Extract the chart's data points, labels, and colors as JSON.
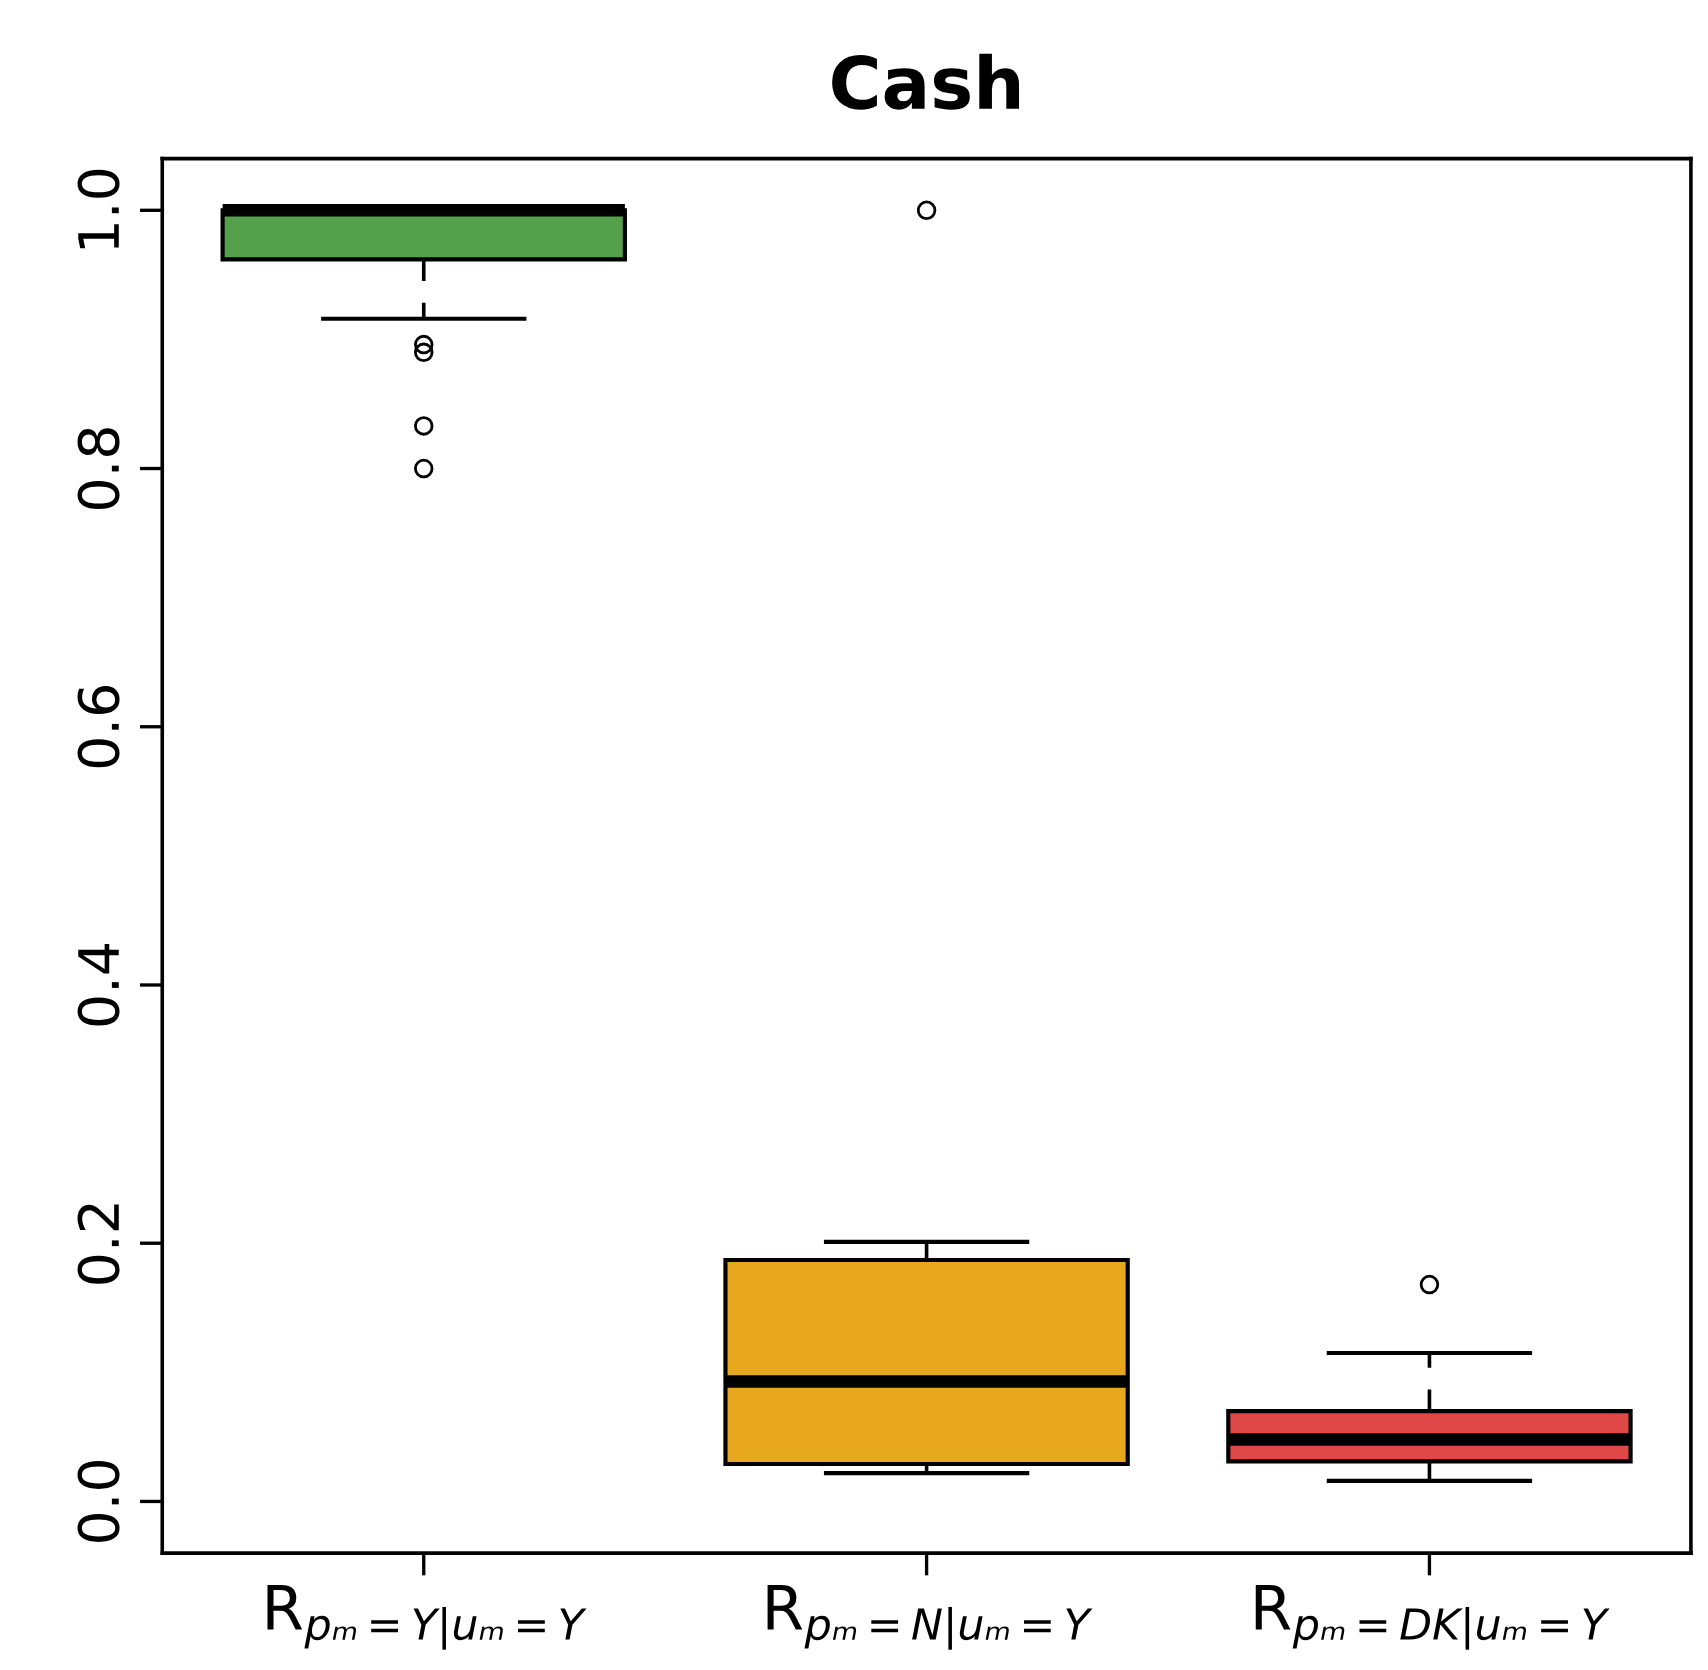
{
  "chart_data": {
    "type": "box",
    "title": "Cash",
    "categories": [
      "R$_{pₘ=Y|uₘ=Y}$",
      "R$_{pₘ=N|uₘ=Y}$",
      "R$_{pₘ=DK|uₘ=Y}$"
    ],
    "colors": [
      "#55a04a",
      "#e8a81e",
      "#e04848"
    ],
    "boxes": [
      {
        "low": 0.916,
        "q1": 0.962,
        "median": 1.0,
        "q3": 1.0,
        "high": 1.0,
        "outliers": [
          0.896,
          0.89,
          0.833,
          0.8
        ]
      },
      {
        "low": 0.022,
        "q1": 0.029,
        "median": 0.093,
        "q3": 0.187,
        "high": 0.201,
        "outliers": [
          1.0
        ]
      },
      {
        "low": 0.016,
        "q1": 0.031,
        "median": 0.048,
        "q3": 0.07,
        "high": 0.115,
        "outliers": [
          0.168
        ]
      }
    ],
    "ylim": [
      -0.04,
      1.04
    ],
    "yticks": [
      {
        "value": 0,
        "label": "0.0"
      },
      0.2,
      0.4,
      0.6,
      0.8,
      {
        "value": 1,
        "label": "1.0"
      }
    ],
    "grid": false,
    "legend": false
  }
}
